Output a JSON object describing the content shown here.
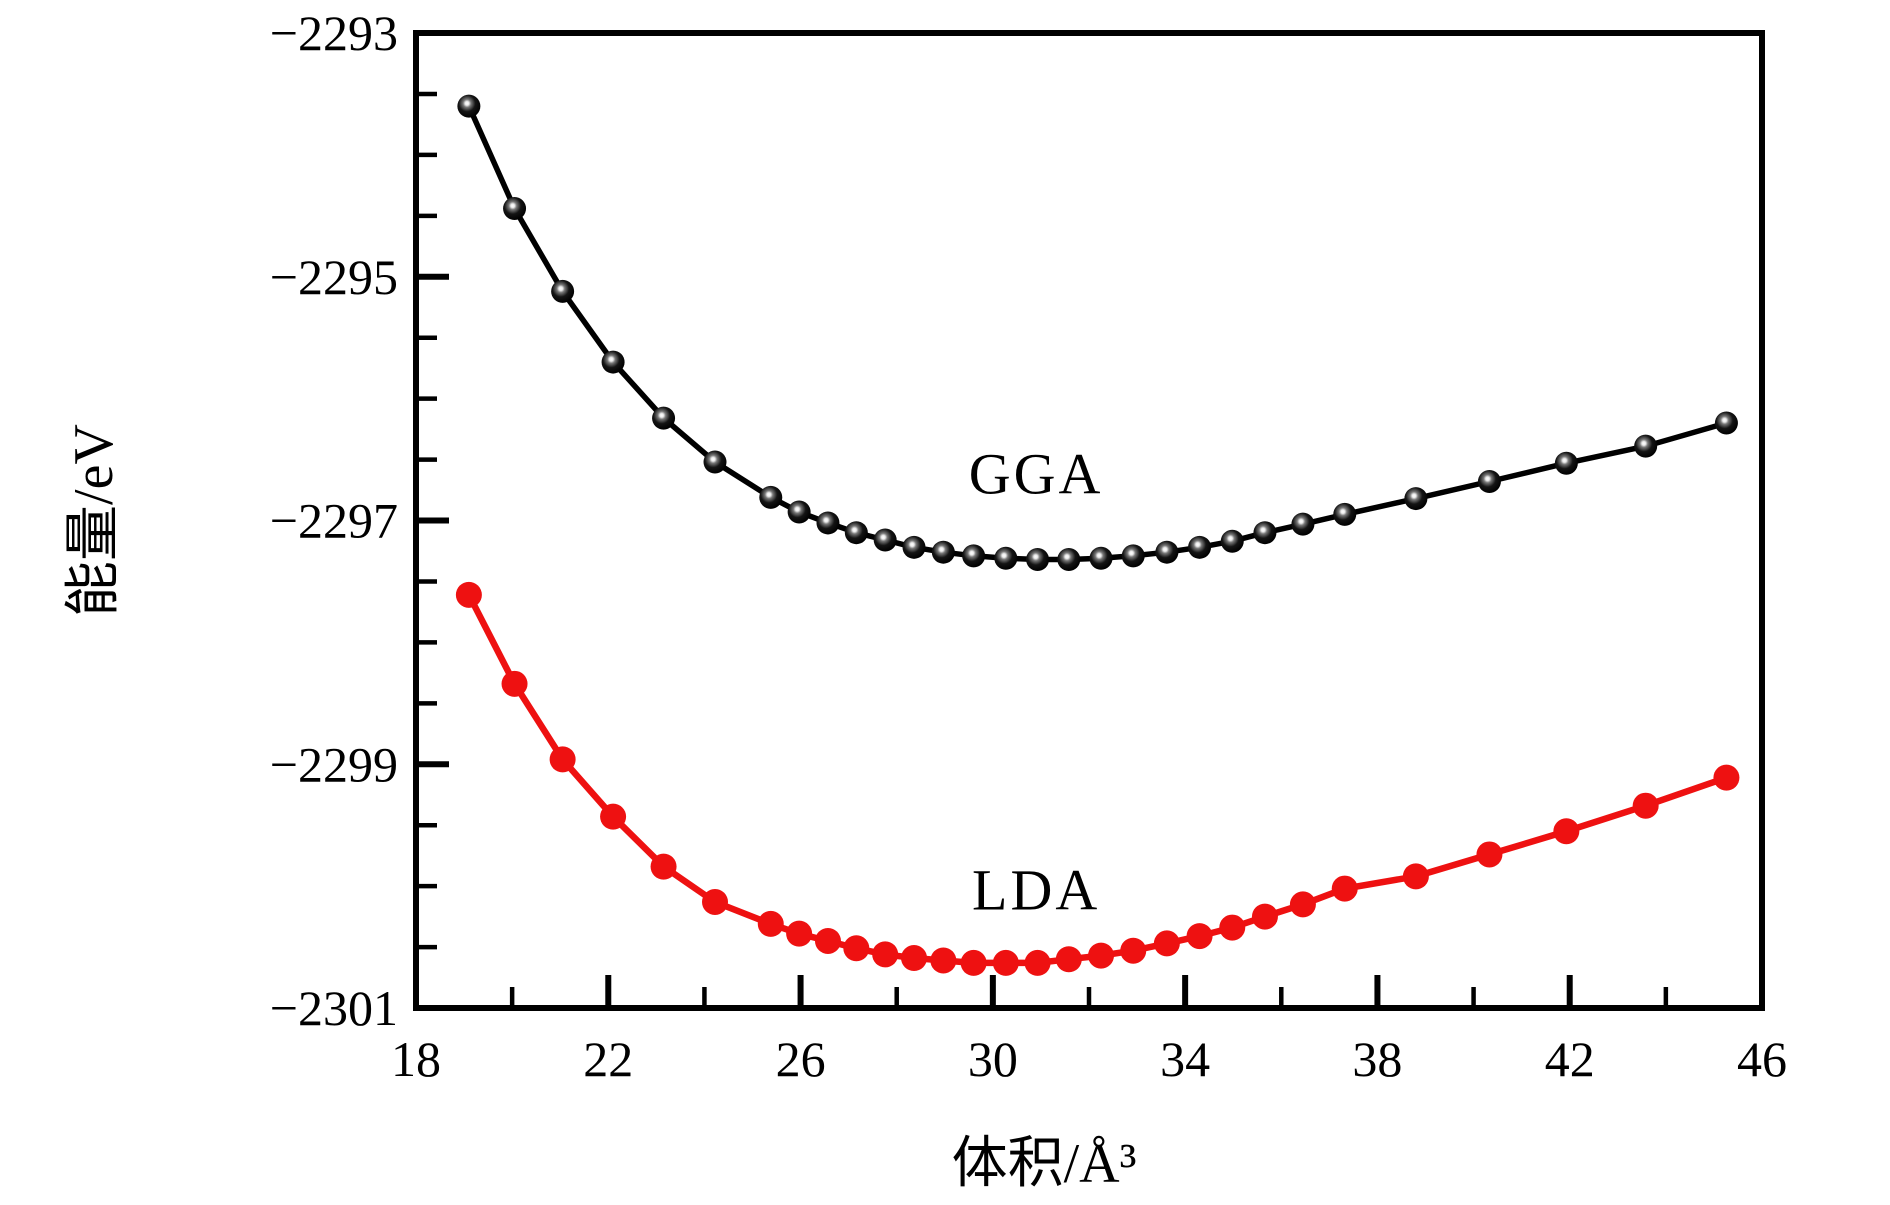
{
  "figure": {
    "background": "#ffffff",
    "frame_color": "#000000"
  },
  "chart_data": {
    "type": "line",
    "title": "",
    "xlabel": "体积/Å³",
    "ylabel": "能量/eV",
    "xlim": [
      18,
      46
    ],
    "ylim": [
      -2301,
      -2293
    ],
    "grid": false,
    "legend_position": "inline-curve-labels",
    "x_major_ticks": [
      18,
      22,
      26,
      30,
      34,
      38,
      42,
      46
    ],
    "x_major_tick_labels": [
      "18",
      "22",
      "26",
      "30",
      "34",
      "38",
      "42",
      "46"
    ],
    "x_minor_ticks": [
      20,
      24,
      28,
      32,
      36,
      40,
      44
    ],
    "y_major_ticks": [
      -2293,
      -2295,
      -2297,
      -2299,
      -2301
    ],
    "y_major_tick_labels": [
      "−2293",
      "−2295",
      "−2297",
      "−2299",
      "−2301"
    ],
    "y_minor_ticks": [
      -2293.5,
      -2294,
      -2294.5,
      -2295.5,
      -2296,
      -2296.5,
      -2297.5,
      -2298,
      -2298.5,
      -2299.5,
      -2300,
      -2300.5
    ],
    "x": [
      19.1,
      20.05,
      21.05,
      22.1,
      23.15,
      24.22,
      25.38,
      25.97,
      26.57,
      27.16,
      27.76,
      28.36,
      28.97,
      29.6,
      30.27,
      30.93,
      31.58,
      32.25,
      32.92,
      33.62,
      34.3,
      34.98,
      35.66,
      36.45,
      37.32,
      38.8,
      40.33,
      41.93,
      43.58,
      45.26
    ],
    "series": [
      {
        "name": "GGA",
        "label": "GGA",
        "color": "#000000",
        "marker": "sphere-3d",
        "marker_radius": 11.5,
        "line_width": 5.5,
        "label_anchor": {
          "x": 30.9,
          "y": -2296.62
        },
        "values": [
          -2293.6,
          -2294.44,
          -2295.12,
          -2295.7,
          -2296.16,
          -2296.52,
          -2296.81,
          -2296.93,
          -2297.02,
          -2297.1,
          -2297.16,
          -2297.22,
          -2297.26,
          -2297.29,
          -2297.31,
          -2297.32,
          -2297.32,
          -2297.31,
          -2297.29,
          -2297.26,
          -2297.22,
          -2297.17,
          -2297.1,
          -2297.03,
          -2296.95,
          -2296.82,
          -2296.68,
          -2296.53,
          -2296.39,
          -2296.2
        ]
      },
      {
        "name": "LDA",
        "label": "LDA",
        "color": "#ee1111",
        "marker": "flat-circle",
        "marker_radius": 13,
        "line_width": 6.5,
        "label_anchor": {
          "x": 30.9,
          "y": -2300.03
        },
        "values": [
          -2297.61,
          -2298.34,
          -2298.96,
          -2299.43,
          -2299.84,
          -2300.13,
          -2300.31,
          -2300.39,
          -2300.45,
          -2300.51,
          -2300.56,
          -2300.59,
          -2300.61,
          -2300.63,
          -2300.63,
          -2300.63,
          -2300.6,
          -2300.57,
          -2300.53,
          -2300.47,
          -2300.41,
          -2300.34,
          -2300.25,
          -2300.15,
          -2300.02,
          -2299.92,
          -2299.74,
          -2299.55,
          -2299.34,
          -2299.11
        ]
      }
    ]
  }
}
